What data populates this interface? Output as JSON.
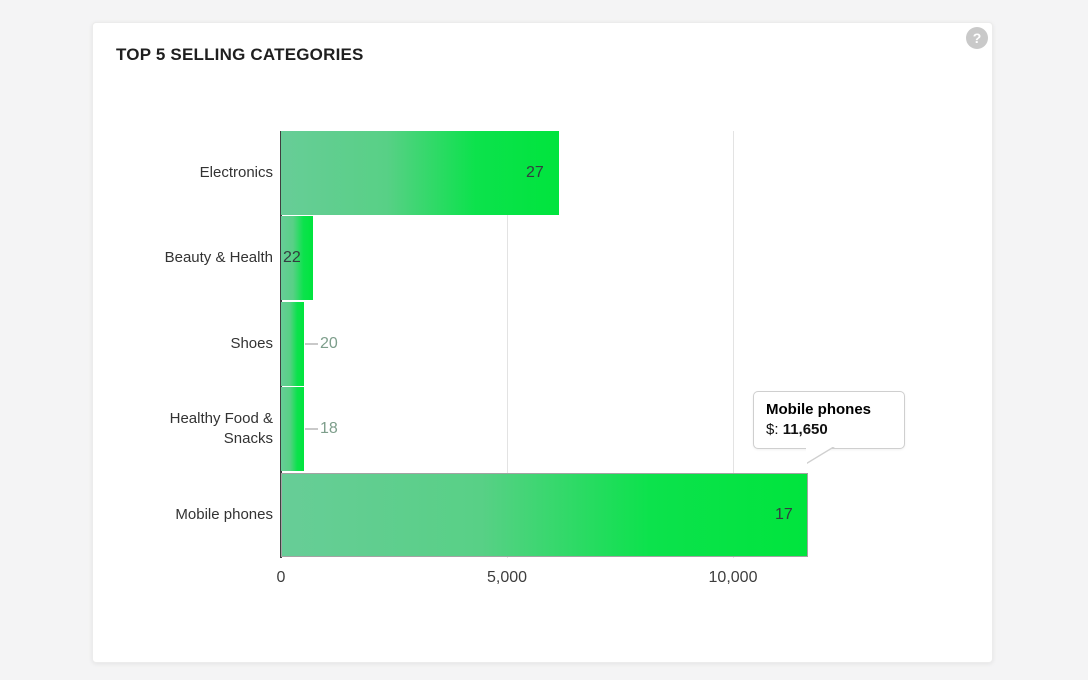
{
  "header": {
    "help_icon": "?"
  },
  "chart_data": {
    "type": "bar",
    "orientation": "horizontal",
    "title": "TOP 5 SELLING CATEGORIES",
    "categories": [
      "Electronics",
      "Beauty & Health",
      "Shoes",
      "Healthy Food & Snacks",
      "Mobile phones"
    ],
    "items": [
      {
        "label_lines": [
          "Electronics"
        ],
        "dollars": 6150,
        "count_label": "27",
        "label_placement": "inside",
        "highlighted": false
      },
      {
        "label_lines": [
          "Beauty & Health"
        ],
        "dollars": 700,
        "count_label": "22",
        "label_placement": "inside",
        "highlighted": false
      },
      {
        "label_lines": [
          "Shoes"
        ],
        "dollars": 500,
        "count_label": "20",
        "label_placement": "outside",
        "highlighted": false
      },
      {
        "label_lines": [
          "Healthy Food &",
          "Snacks"
        ],
        "dollars": 500,
        "count_label": "18",
        "label_placement": "outside",
        "highlighted": false
      },
      {
        "label_lines": [
          "Mobile phones"
        ],
        "dollars": 11650,
        "count_label": "17",
        "label_placement": "inside",
        "highlighted": true
      }
    ],
    "x_ticks": [
      0,
      5000,
      10000
    ],
    "x_tick_labels": [
      "0",
      "5,000",
      "10,000"
    ],
    "xlim": [
      0,
      15000
    ],
    "grid": "vertical-only",
    "legend": "none",
    "bar_gradient": [
      "#67cd97",
      "#00e43d"
    ],
    "axis_color": "#3f3f3f",
    "gridline_color": "#e3e3e3",
    "tooltip": {
      "title": "Mobile phones",
      "label": "$:",
      "value": "11,650"
    }
  }
}
